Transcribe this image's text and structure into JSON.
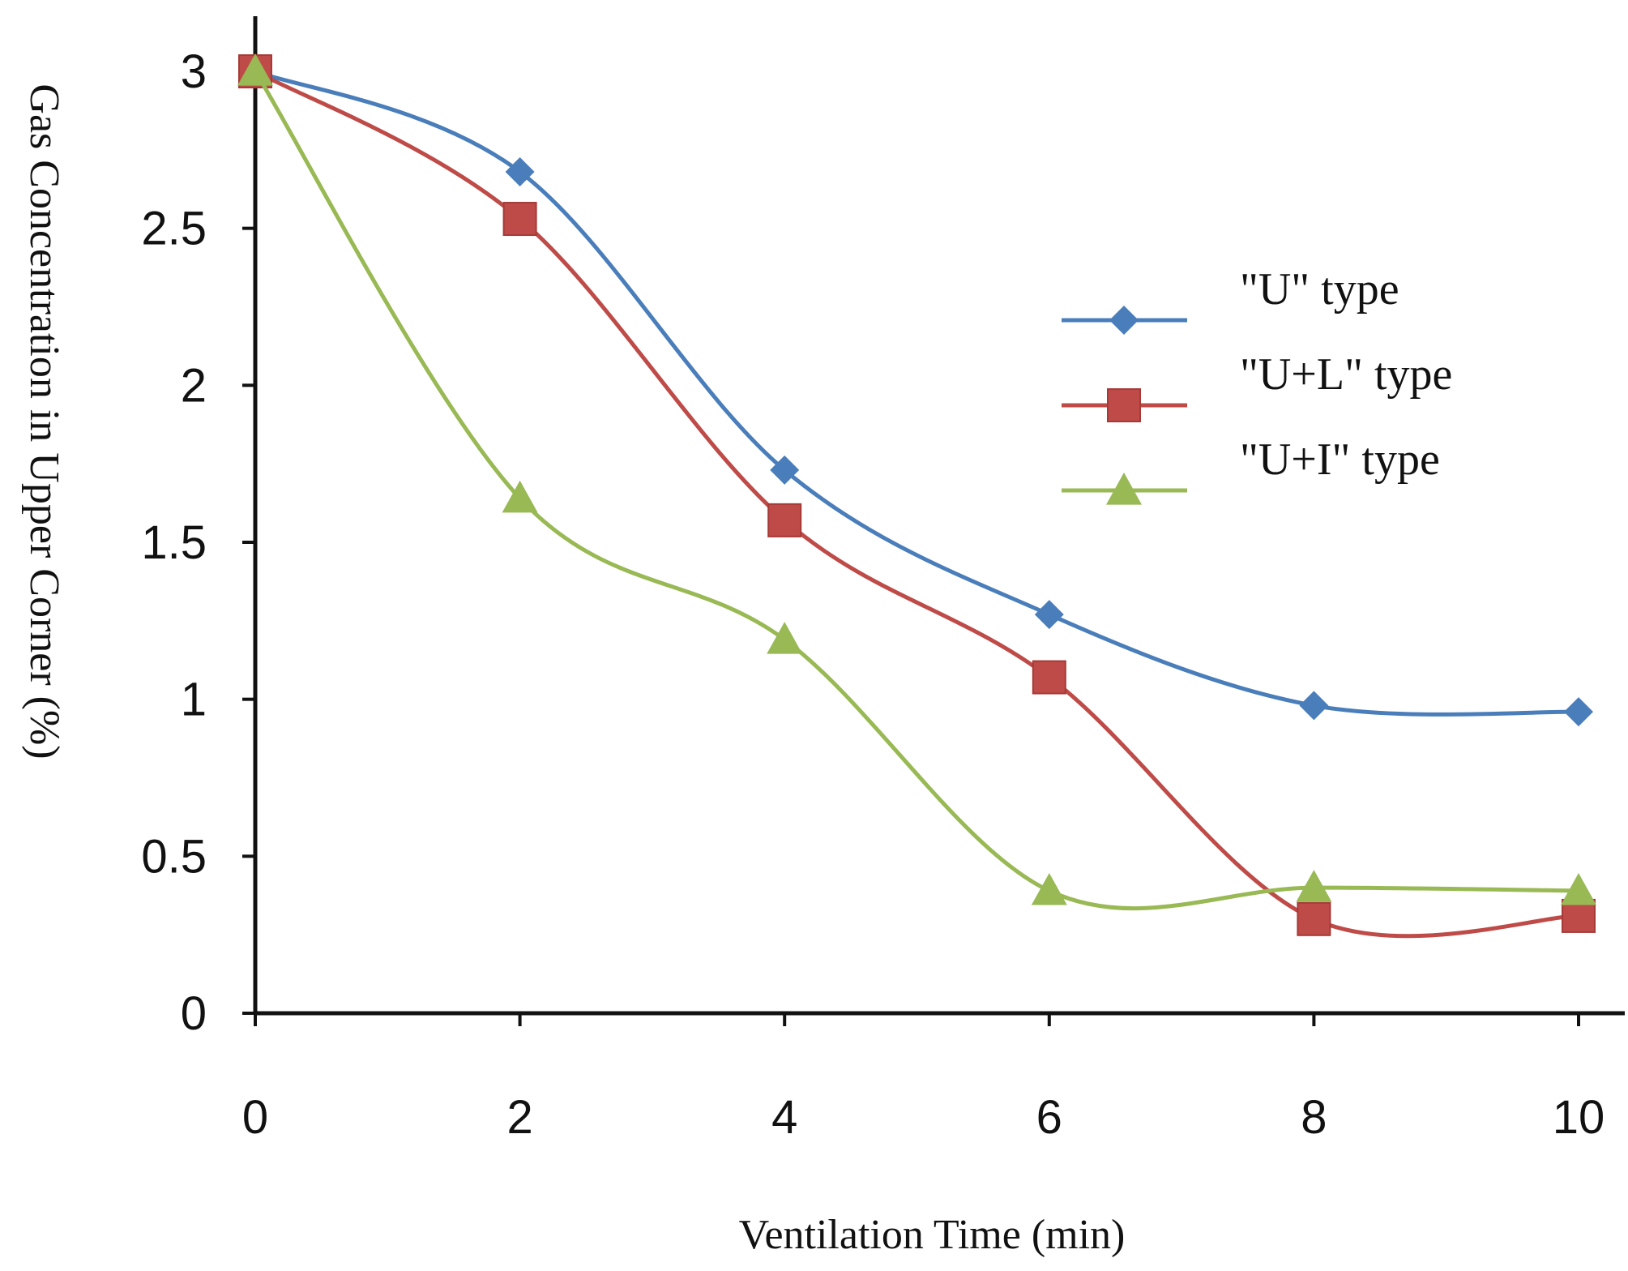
{
  "chart_data": {
    "type": "line",
    "title": "",
    "xlabel": "Ventilation Time (min)",
    "ylabel": "Gas Concentration in Upper Corner (%)",
    "x": [
      0,
      2,
      4,
      6,
      8,
      10
    ],
    "x_tick_labels": [
      "0",
      "2",
      "4",
      "6",
      "8",
      "10"
    ],
    "y_tick_labels": [
      "0",
      "0.5",
      "1",
      "1.5",
      "2",
      "2.5",
      "3"
    ],
    "y_ticks": [
      0,
      0.5,
      1,
      1.5,
      2,
      2.5,
      3
    ],
    "xlim": [
      0,
      10.4
    ],
    "ylim": [
      0,
      3.2
    ],
    "grid": false,
    "legend_position": "right",
    "series": [
      {
        "name": "\"U\" type",
        "color": "#4a7ebb",
        "marker": "diamond",
        "values": [
          3.0,
          2.68,
          1.73,
          1.27,
          0.98,
          0.96
        ]
      },
      {
        "name": "\"U+L\" type",
        "color": "#be4b48",
        "marker": "square",
        "values": [
          3.0,
          2.53,
          1.57,
          1.07,
          0.3,
          0.31
        ]
      },
      {
        "name": "\"U+I\" type",
        "color": "#98b954",
        "marker": "triangle",
        "values": [
          3.0,
          1.64,
          1.19,
          0.39,
          0.4,
          0.39
        ]
      }
    ]
  }
}
